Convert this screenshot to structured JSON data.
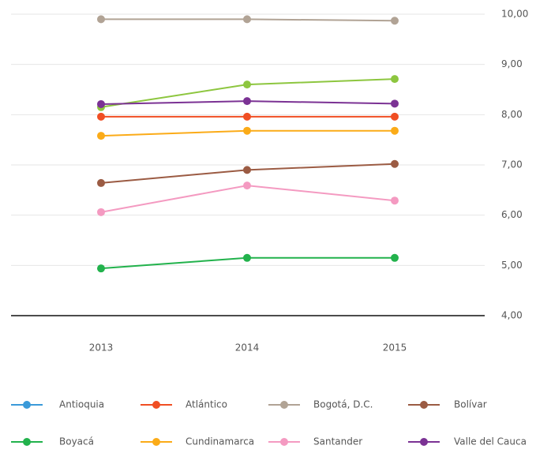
{
  "chart_data": {
    "type": "line",
    "categories": [
      "2013",
      "2014",
      "2015"
    ],
    "series": [
      {
        "name": "Antioquia",
        "color": "#3a9ad9",
        "line_color": "#8dc63f",
        "values": [
          8.15,
          8.6,
          8.71
        ]
      },
      {
        "name": "Atlántico",
        "color": "#f04e23",
        "values": [
          7.96,
          7.96,
          7.96
        ]
      },
      {
        "name": "Bogotá, D.C.",
        "color": "#b1a395",
        "values": [
          9.9,
          9.9,
          9.87
        ]
      },
      {
        "name": "Bolívar",
        "color": "#9b5b43",
        "values": [
          6.64,
          6.9,
          7.02
        ]
      },
      {
        "name": "Boyacá",
        "color": "#22b24c",
        "values": [
          4.94,
          5.15,
          5.15
        ]
      },
      {
        "name": "Cundinamarca",
        "color": "#fbab18",
        "values": [
          7.58,
          7.68,
          7.68
        ]
      },
      {
        "name": "Santander",
        "color": "#f49ac1",
        "values": [
          6.06,
          6.59,
          6.29
        ]
      },
      {
        "name": "Valle del Cauca",
        "color": "#7b3294",
        "values": [
          8.21,
          8.27,
          8.22
        ]
      }
    ],
    "ylim": [
      4,
      10
    ],
    "yticks": [
      {
        "value": 4,
        "label": "4,00"
      },
      {
        "value": 5,
        "label": "5,00"
      },
      {
        "value": 6,
        "label": "6,00"
      },
      {
        "value": 7,
        "label": "7,00"
      },
      {
        "value": 8,
        "label": "8,00"
      },
      {
        "value": 9,
        "label": "9,00"
      },
      {
        "value": 10,
        "label": "10,00"
      }
    ],
    "grid": true,
    "legend": "bottom"
  }
}
